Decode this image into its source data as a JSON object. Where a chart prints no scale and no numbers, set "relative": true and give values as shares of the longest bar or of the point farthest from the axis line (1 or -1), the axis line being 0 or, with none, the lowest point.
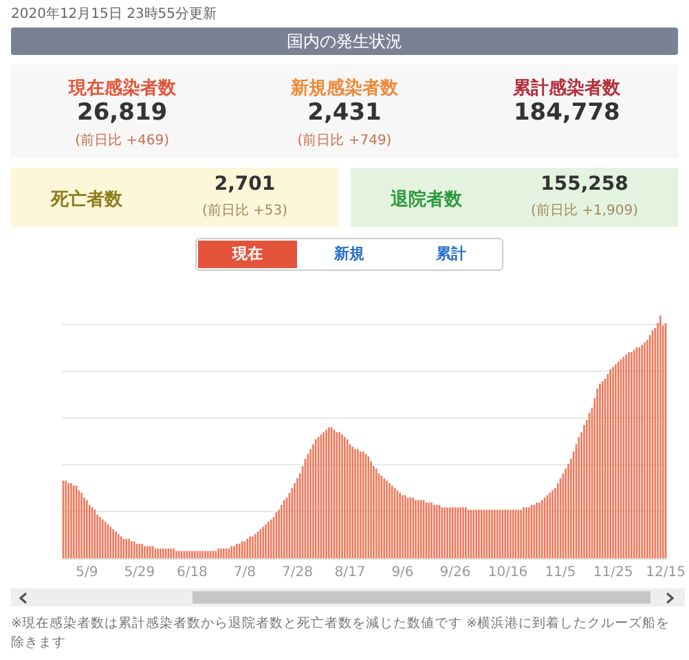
{
  "chart_data": [
    {
      "type": "other",
      "title": "国内の発生状況",
      "subtitle": "2020年12月15日 23時55分更新",
      "annotations": [
        "現在感染者数",
        "26,819",
        "(前日比 +469)",
        "新規感染者数",
        "2,431",
        "(前日比 +749)",
        "累計感染者数",
        "184,778",
        "死亡者数",
        "2,701",
        "(前日比 +53)",
        "退院者数",
        "155,258",
        "(前日比 +1,909)"
      ]
    },
    {
      "type": "bar",
      "relative": true,
      "color": "#ec7a5e",
      "grid": true,
      "categories": [
        null,
        null,
        null,
        null,
        null,
        null,
        null,
        null,
        null,
        "5/9",
        null,
        null,
        null,
        null,
        null,
        null,
        null,
        null,
        null,
        null,
        null,
        null,
        null,
        null,
        null,
        null,
        null,
        null,
        null,
        "5/29",
        null,
        null,
        null,
        null,
        null,
        null,
        null,
        null,
        null,
        null,
        null,
        null,
        null,
        null,
        null,
        null,
        null,
        null,
        null,
        "6/18",
        null,
        null,
        null,
        null,
        null,
        null,
        null,
        null,
        null,
        null,
        null,
        null,
        null,
        null,
        null,
        null,
        null,
        null,
        null,
        "7/8",
        null,
        null,
        null,
        null,
        null,
        null,
        null,
        null,
        null,
        null,
        null,
        null,
        null,
        null,
        null,
        null,
        null,
        null,
        null,
        "7/28",
        null,
        null,
        null,
        null,
        null,
        null,
        null,
        null,
        null,
        null,
        null,
        null,
        null,
        null,
        null,
        null,
        null,
        null,
        null,
        "8/17",
        null,
        null,
        null,
        null,
        null,
        null,
        null,
        null,
        null,
        null,
        null,
        null,
        null,
        null,
        null,
        null,
        null,
        null,
        null,
        "9/6",
        null,
        null,
        null,
        null,
        null,
        null,
        null,
        null,
        null,
        null,
        null,
        null,
        null,
        null,
        null,
        null,
        null,
        null,
        null,
        "9/26",
        null,
        null,
        null,
        null,
        null,
        null,
        null,
        null,
        null,
        null,
        null,
        null,
        null,
        null,
        null,
        null,
        null,
        null,
        null,
        "10/16",
        null,
        null,
        null,
        null,
        null,
        null,
        null,
        null,
        null,
        null,
        null,
        null,
        null,
        null,
        null,
        null,
        null,
        null,
        null,
        "11/5",
        null,
        null,
        null,
        null,
        null,
        null,
        null,
        null,
        null,
        null,
        null,
        null,
        null,
        null,
        null,
        null,
        null,
        null,
        null,
        "11/25",
        null,
        null,
        null,
        null,
        null,
        null,
        null,
        null,
        null,
        null,
        null,
        null,
        null,
        null,
        null,
        null,
        null,
        null,
        null,
        "12/15"
      ],
      "values": [
        0.32,
        0.32,
        0.31,
        0.31,
        0.3,
        0.3,
        0.28,
        0.27,
        0.25,
        0.24,
        0.22,
        0.21,
        0.2,
        0.18,
        0.17,
        0.16,
        0.15,
        0.14,
        0.13,
        0.12,
        0.11,
        0.1,
        0.09,
        0.08,
        0.08,
        0.08,
        0.07,
        0.07,
        0.06,
        0.06,
        0.06,
        0.05,
        0.05,
        0.05,
        0.05,
        0.04,
        0.04,
        0.04,
        0.04,
        0.04,
        0.04,
        0.04,
        0.04,
        0.03,
        0.03,
        0.03,
        0.03,
        0.03,
        0.03,
        0.03,
        0.03,
        0.03,
        0.03,
        0.03,
        0.03,
        0.03,
        0.03,
        0.03,
        0.03,
        0.04,
        0.04,
        0.04,
        0.04,
        0.04,
        0.05,
        0.05,
        0.06,
        0.06,
        0.07,
        0.07,
        0.08,
        0.09,
        0.09,
        0.1,
        0.11,
        0.12,
        0.13,
        0.14,
        0.15,
        0.16,
        0.17,
        0.19,
        0.2,
        0.22,
        0.24,
        0.25,
        0.27,
        0.29,
        0.31,
        0.33,
        0.35,
        0.38,
        0.41,
        0.43,
        0.45,
        0.47,
        0.49,
        0.5,
        0.51,
        0.52,
        0.53,
        0.54,
        0.54,
        0.53,
        0.52,
        0.52,
        0.51,
        0.5,
        0.49,
        0.47,
        0.46,
        0.45,
        0.45,
        0.44,
        0.44,
        0.43,
        0.42,
        0.4,
        0.38,
        0.37,
        0.35,
        0.34,
        0.33,
        0.32,
        0.31,
        0.3,
        0.29,
        0.28,
        0.27,
        0.26,
        0.26,
        0.25,
        0.25,
        0.25,
        0.24,
        0.24,
        0.24,
        0.24,
        0.23,
        0.23,
        0.23,
        0.22,
        0.22,
        0.22,
        0.21,
        0.21,
        0.21,
        0.21,
        0.21,
        0.21,
        0.21,
        0.21,
        0.21,
        0.21,
        0.2,
        0.2,
        0.2,
        0.2,
        0.2,
        0.2,
        0.2,
        0.2,
        0.2,
        0.2,
        0.2,
        0.2,
        0.2,
        0.2,
        0.2,
        0.2,
        0.2,
        0.2,
        0.2,
        0.2,
        0.2,
        0.21,
        0.21,
        0.21,
        0.22,
        0.22,
        0.23,
        0.23,
        0.24,
        0.25,
        0.26,
        0.27,
        0.28,
        0.29,
        0.31,
        0.33,
        0.35,
        0.37,
        0.39,
        0.41,
        0.44,
        0.47,
        0.5,
        0.52,
        0.55,
        0.57,
        0.6,
        0.62,
        0.66,
        0.7,
        0.72,
        0.73,
        0.74,
        0.76,
        0.78,
        0.79,
        0.8,
        0.81,
        0.82,
        0.83,
        0.84,
        0.85,
        0.85,
        0.86,
        0.87,
        0.87,
        0.88,
        0.89,
        0.9,
        0.92,
        0.94,
        0.95,
        0.97,
        1,
        0.96,
        0.97
      ],
      "annotations": [
        "現在",
        "新規",
        "累計",
        "※現在感染者数は累計感染者数から退院者数と死亡者数を減じた数値です ※横浜港に到着したクルーズ船を除きます"
      ]
    }
  ]
}
